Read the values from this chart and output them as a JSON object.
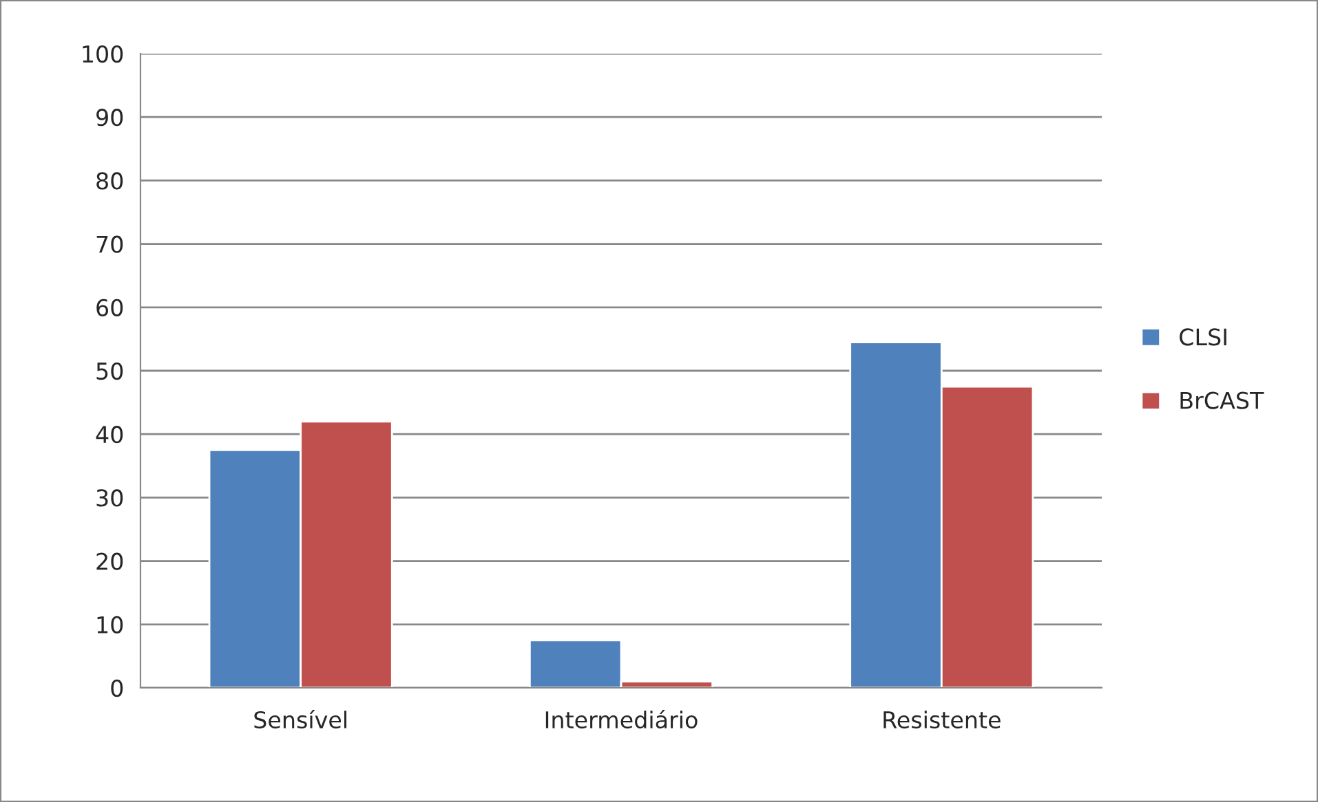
{
  "chart_data": {
    "type": "bar",
    "categories": [
      "Sensível",
      "Intermediário",
      "Resistente"
    ],
    "series": [
      {
        "name": "CLSI",
        "color": "#4f81bd",
        "values": [
          37.5,
          7.5,
          54.5
        ]
      },
      {
        "name": "BrCAST",
        "color": "#c0504d",
        "values": [
          42,
          1,
          47.5
        ]
      }
    ],
    "ylim": [
      0,
      100
    ],
    "yticks": [
      0,
      10,
      20,
      30,
      40,
      50,
      60,
      70,
      80,
      90,
      100
    ],
    "grid": "y",
    "legend": "right"
  }
}
